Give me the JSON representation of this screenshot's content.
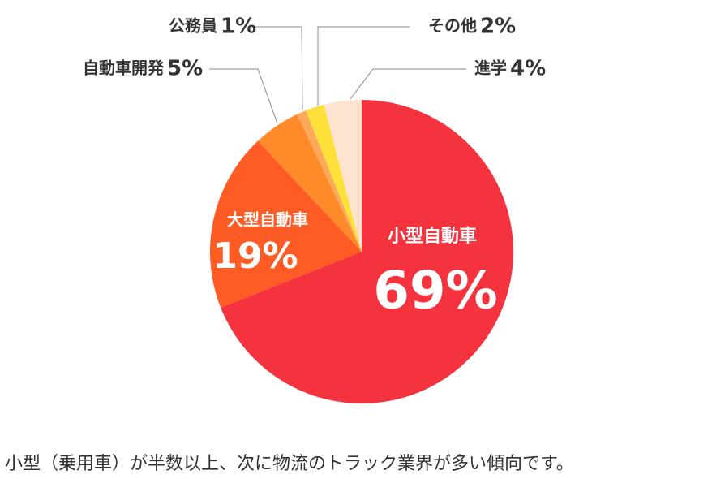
{
  "chart_data": {
    "type": "pie",
    "categories": [
      "小型自動車",
      "大型自動車",
      "自動車開発",
      "公務員",
      "その他",
      "進学"
    ],
    "values": [
      69,
      19,
      5,
      1,
      2,
      4
    ],
    "value_labels": [
      "69%",
      "19%",
      "5%",
      "1%",
      "2%",
      "4%"
    ],
    "colors": [
      "#f5333f",
      "#ff5b24",
      "#fe8a2a",
      "#fcaa5a",
      "#fde03a",
      "#fde3d0"
    ],
    "caption": "小型（乗用車）が半数以上、次に物流のトラック業界が多い傾向です。"
  }
}
